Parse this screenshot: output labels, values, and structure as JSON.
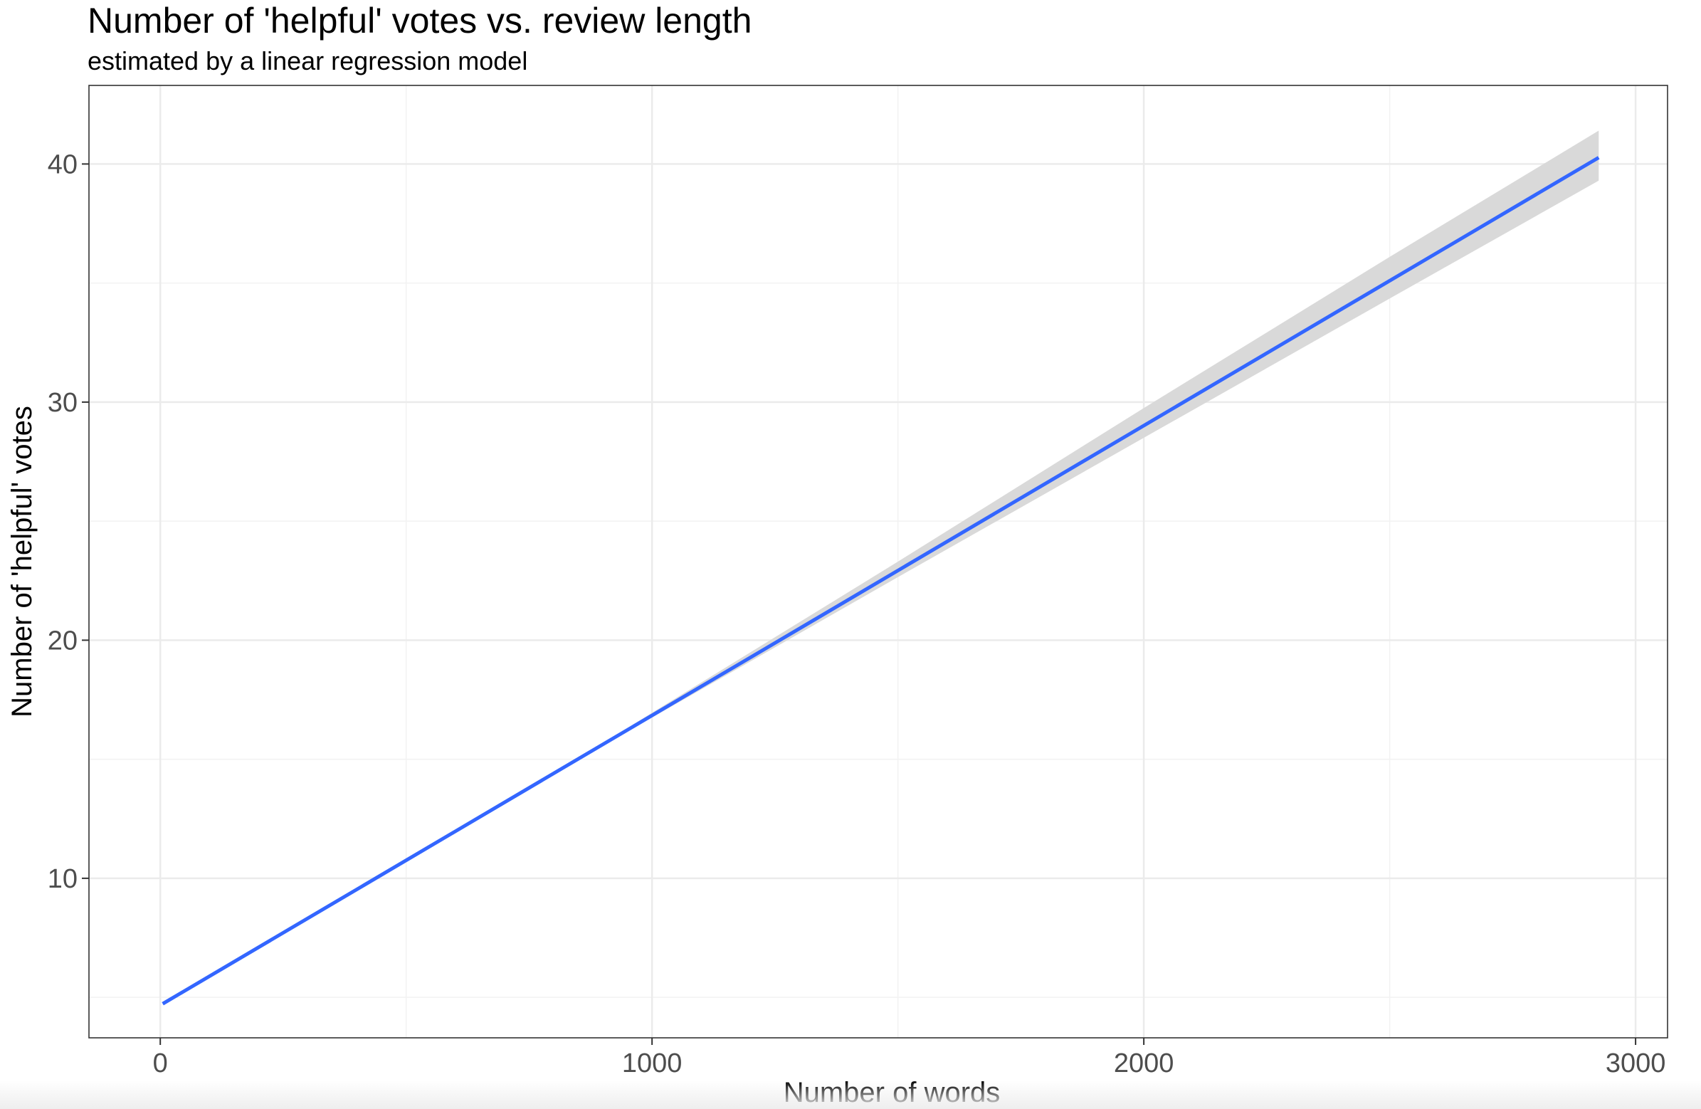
{
  "chart_data": {
    "type": "line",
    "title": "Number of 'helpful' votes vs. review length",
    "subtitle": "estimated by a linear regression model",
    "xlabel": "Number of words",
    "ylabel": "Number of 'helpful' votes",
    "xlim": [
      -145,
      3065
    ],
    "ylim": [
      3.3,
      43.3
    ],
    "x_ticks": [
      0,
      1000,
      2000,
      3000
    ],
    "x_tick_labels": [
      "0",
      "1000",
      "2000",
      "3000"
    ],
    "x_minor_ticks": [
      500,
      1500,
      2500
    ],
    "y_ticks": [
      10,
      20,
      30,
      40
    ],
    "y_tick_labels": [
      "10",
      "20",
      "30",
      "40"
    ],
    "y_minor_ticks": [
      5,
      15,
      25,
      35
    ],
    "grid": true,
    "series": [
      {
        "color": "#3366ff",
        "x": [
          5,
          2925
        ],
        "y": [
          4.73,
          40.27
        ],
        "ribbon": {
          "color": "#d9d9d9",
          "x": [
            5,
            500,
            900,
            1000,
            1500,
            2000,
            2500,
            2925
          ],
          "ymin": [
            4.7,
            10.69,
            15.55,
            16.75,
            22.65,
            28.5,
            34.35,
            39.3
          ],
          "ymax": [
            4.76,
            10.79,
            15.68,
            16.95,
            23.3,
            29.75,
            36.1,
            41.4
          ]
        }
      }
    ]
  }
}
